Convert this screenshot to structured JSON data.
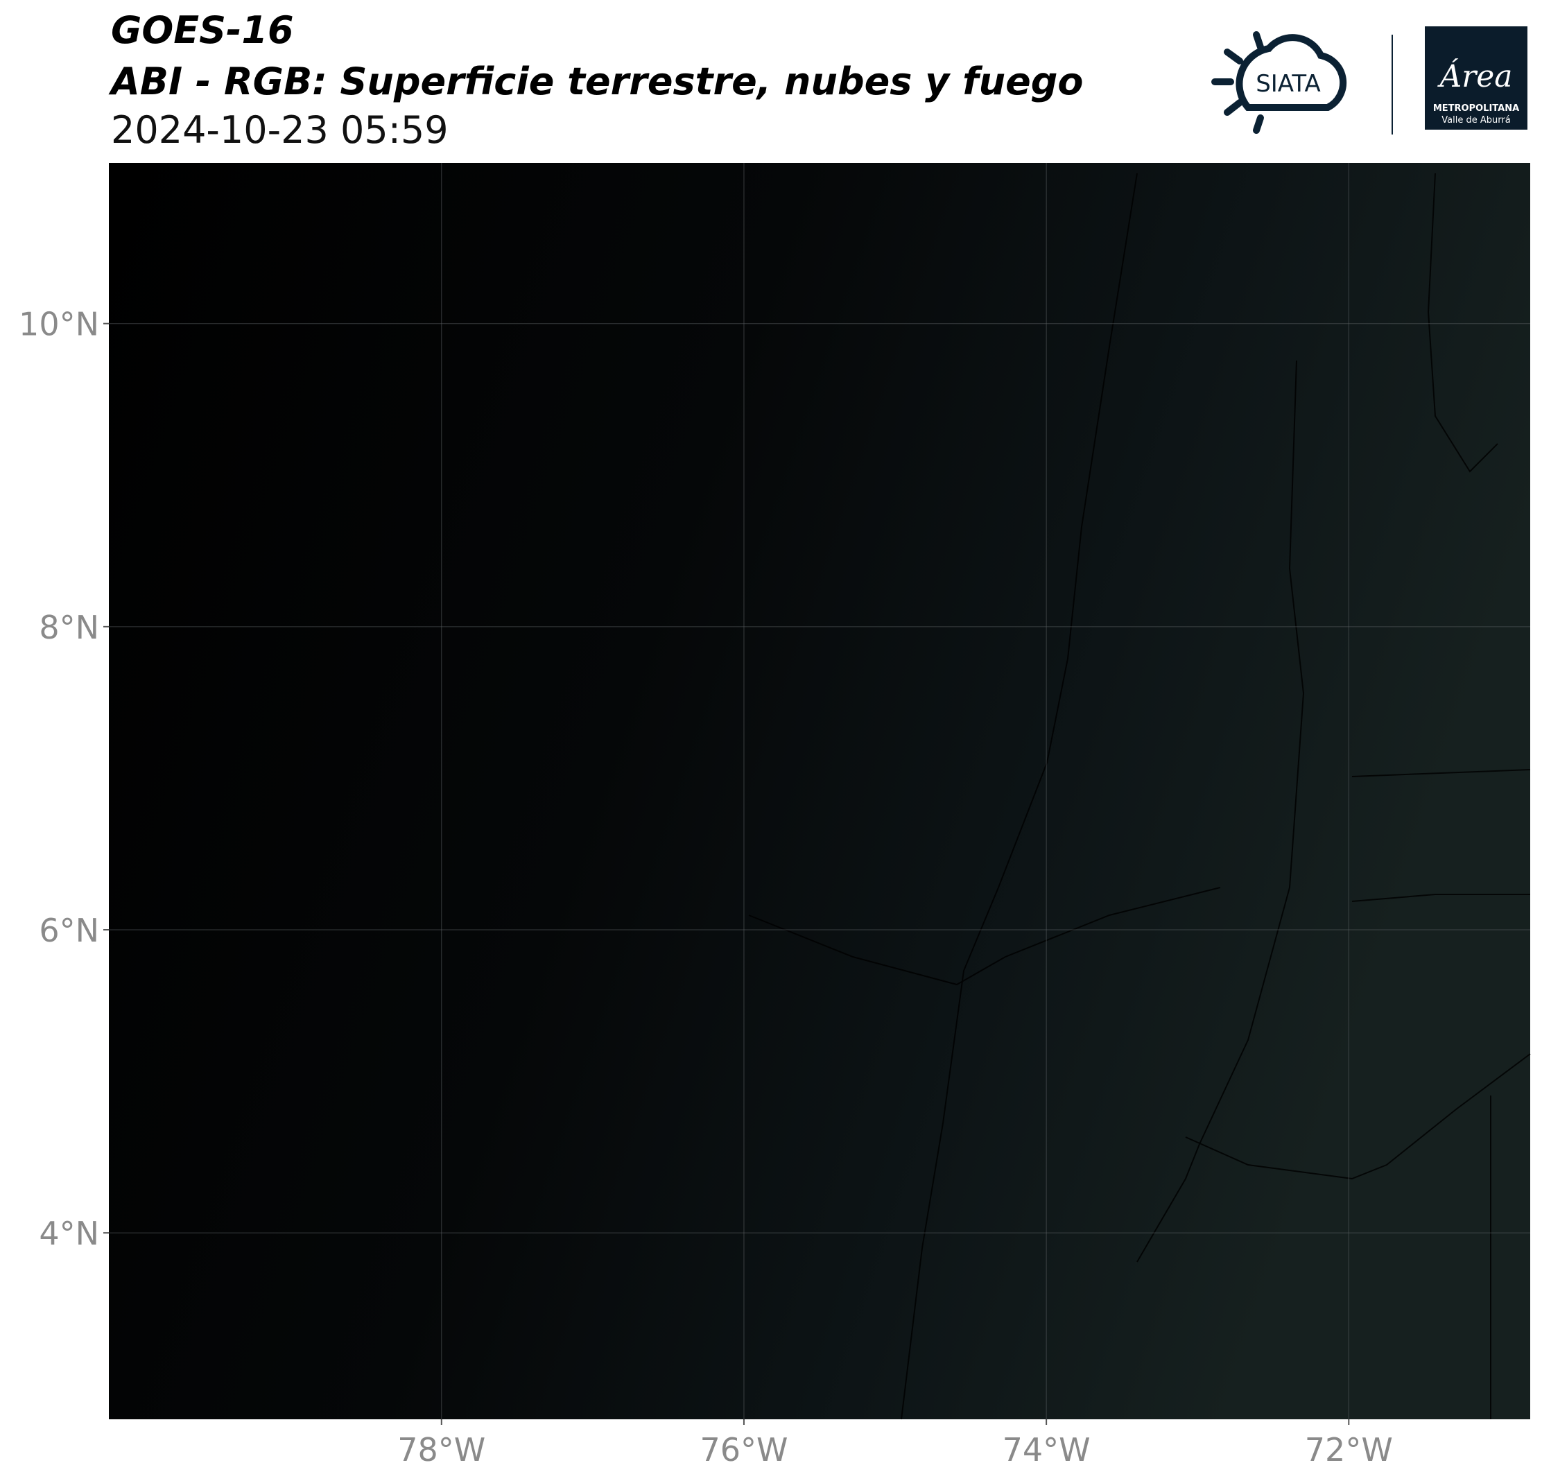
{
  "map": {
    "title": "GOES-16",
    "subtitle": "ABI - RGB: Superficie terrestre, nubes y fuego",
    "datetime": "2024-10-23 05:59",
    "logos": {
      "siata": "SIATA",
      "area": "Área",
      "area_line1": "METROPOLITANA",
      "area_line2": "Valle de Aburrá"
    },
    "xlim": [
      -80.2,
      -70.8
    ],
    "ylim": [
      2.77,
      11.06
    ],
    "xticks": [
      {
        "value": -78,
        "label": "78°W"
      },
      {
        "value": -76,
        "label": "76°W"
      },
      {
        "value": -74,
        "label": "74°W"
      },
      {
        "value": -72,
        "label": "72°W"
      }
    ],
    "yticks": [
      {
        "value": 4,
        "label": "4°N"
      },
      {
        "value": 6,
        "label": "6°N"
      },
      {
        "value": 8,
        "label": "8°N"
      },
      {
        "value": 10,
        "label": "10°N"
      }
    ],
    "grid": true
  }
}
